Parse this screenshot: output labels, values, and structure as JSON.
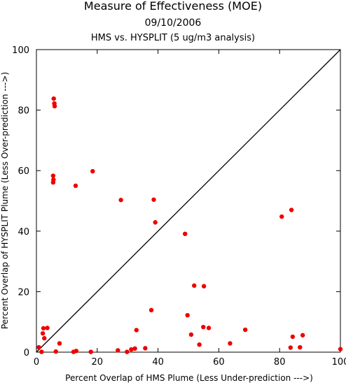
{
  "chart_data": {
    "type": "scatter",
    "title": "Measure of Effectiveness (MOE)",
    "date": "09/10/2006",
    "subtitle": "HMS vs. HYSPLIT  (5 ug/m3 analysis)",
    "xlabel": "Percent Overlap of HMS Plume (Less Under-prediction --->)",
    "ylabel": "Percent Overlap of HYSPLIT Plume (Less Over-prediction --->)",
    "xlim": [
      0,
      100
    ],
    "ylim": [
      0,
      100
    ],
    "xticks": [
      0,
      20,
      40,
      60,
      80,
      100
    ],
    "yticks": [
      0,
      20,
      40,
      60,
      80,
      100
    ],
    "reference_line": "y = x",
    "grid": false,
    "marker_color": "#ee0000",
    "line_color": "#000000",
    "series": [
      {
        "points": [
          [
            0.8,
            1.6
          ],
          [
            1.7,
            0.1
          ],
          [
            2.1,
            6.2
          ],
          [
            2.3,
            7.9
          ],
          [
            2.6,
            4.6
          ],
          [
            3.6,
            8.0
          ],
          [
            5.7,
            83.8
          ],
          [
            5.9,
            82.2
          ],
          [
            6.0,
            81.3
          ],
          [
            5.5,
            58.3
          ],
          [
            5.6,
            57.0
          ],
          [
            5.5,
            56.1
          ],
          [
            6.4,
            0.2
          ],
          [
            7.6,
            2.9
          ],
          [
            12.2,
            0.1
          ],
          [
            13.1,
            0.4
          ],
          [
            12.9,
            55.0
          ],
          [
            18.5,
            59.8
          ],
          [
            17.9,
            0.1
          ],
          [
            26.8,
            0.6
          ],
          [
            27.8,
            50.3
          ],
          [
            29.8,
            0.1
          ],
          [
            31.2,
            0.9
          ],
          [
            32.4,
            1.2
          ],
          [
            32.9,
            7.3
          ],
          [
            35.8,
            1.3
          ],
          [
            37.8,
            13.9
          ],
          [
            38.6,
            50.4
          ],
          [
            39.1,
            42.9
          ],
          [
            48.9,
            39.1
          ],
          [
            49.7,
            12.2
          ],
          [
            50.9,
            5.8
          ],
          [
            51.9,
            22.0
          ],
          [
            53.6,
            2.5
          ],
          [
            54.9,
            8.3
          ],
          [
            55.1,
            21.8
          ],
          [
            56.7,
            8.0
          ],
          [
            63.7,
            2.9
          ],
          [
            68.7,
            7.4
          ],
          [
            80.7,
            44.8
          ],
          [
            83.6,
            1.5
          ],
          [
            83.9,
            47.0
          ],
          [
            84.3,
            5.1
          ],
          [
            86.7,
            1.6
          ],
          [
            87.6,
            5.6
          ],
          [
            100.0,
            1.0
          ]
        ]
      }
    ]
  }
}
